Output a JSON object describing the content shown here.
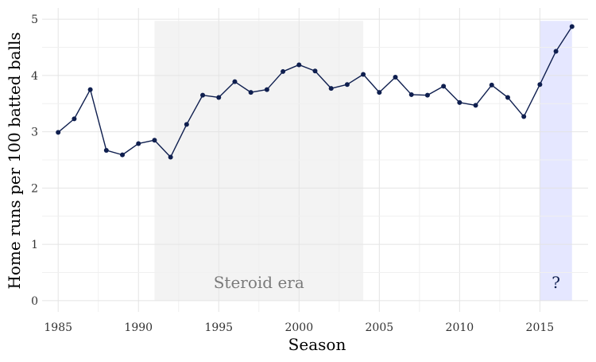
{
  "chart_data": {
    "type": "line",
    "title": "",
    "xlabel": "Season",
    "ylabel": "Home runs per 100 batted balls",
    "xlim": [
      1984,
      2018
    ],
    "ylim": [
      -0.2,
      5.2
    ],
    "xticks": [
      1985,
      1990,
      1995,
      2000,
      2005,
      2010,
      2015
    ],
    "yticks": [
      0,
      1,
      2,
      3,
      4,
      5
    ],
    "grid": true,
    "legend": "none",
    "series": [
      {
        "color": "#0f1f4f",
        "x": [
          1985,
          1986,
          1987,
          1988,
          1989,
          1990,
          1991,
          1992,
          1993,
          1994,
          1995,
          1996,
          1997,
          1998,
          1999,
          2000,
          2001,
          2002,
          2003,
          2004,
          2005,
          2006,
          2007,
          2008,
          2009,
          2010,
          2011,
          2012,
          2013,
          2014,
          2015,
          2016,
          2017
        ],
        "y": [
          2.99,
          3.23,
          3.75,
          2.67,
          2.59,
          2.79,
          2.85,
          2.55,
          3.13,
          3.65,
          3.61,
          3.89,
          3.7,
          3.75,
          4.07,
          4.19,
          4.08,
          3.77,
          3.84,
          4.02,
          3.7,
          3.97,
          3.66,
          3.65,
          3.81,
          3.52,
          3.47,
          3.83,
          3.61,
          3.27,
          3.84,
          4.43,
          4.87
        ]
      }
    ],
    "shaded_regions": [
      {
        "label": "Steroid era",
        "start": 1991,
        "end": 2004,
        "color": "#f3f3f3",
        "text_color": "#7a7a7a"
      },
      {
        "label": "?",
        "start": 2015,
        "end": 2017,
        "color": "#e5e7ff",
        "text_color": "#0f1f4f"
      }
    ]
  }
}
